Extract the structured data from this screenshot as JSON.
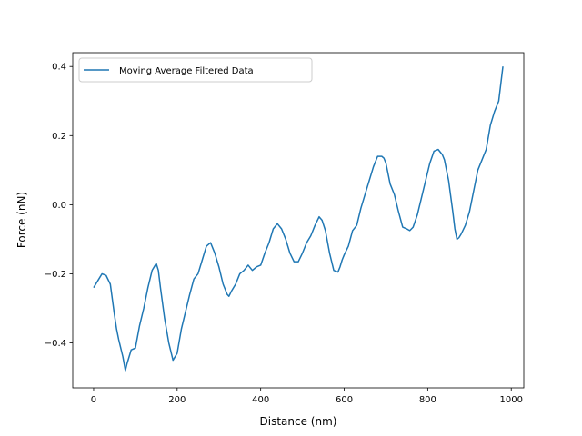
{
  "chart_data": {
    "type": "line",
    "title": "",
    "xlabel": "Distance (nm)",
    "ylabel": "Force (nN)",
    "xlim": [
      -50,
      1030
    ],
    "ylim": [
      -0.53,
      0.44
    ],
    "xticks": [
      0,
      200,
      400,
      600,
      800,
      1000
    ],
    "yticks": [
      -0.4,
      -0.2,
      0.0,
      0.2,
      0.4
    ],
    "xtick_labels": [
      "0",
      "200",
      "400",
      "600",
      "800",
      "1000"
    ],
    "ytick_labels": [
      "−0.4",
      "−0.2",
      "0.0",
      "0.2",
      "0.4"
    ],
    "grid": false,
    "legend_position": "upper-left",
    "series": [
      {
        "name": "Moving Average Filtered Data",
        "color": "#1f77b4",
        "x": [
          0,
          10,
          20,
          30,
          40,
          50,
          55,
          60,
          70,
          76,
          80,
          90,
          100,
          110,
          120,
          130,
          140,
          150,
          155,
          160,
          170,
          180,
          190,
          200,
          210,
          220,
          230,
          240,
          250,
          260,
          270,
          280,
          285,
          290,
          300,
          310,
          320,
          324,
          330,
          340,
          350,
          360,
          370,
          380,
          390,
          400,
          410,
          420,
          430,
          440,
          450,
          460,
          470,
          480,
          490,
          500,
          510,
          520,
          530,
          540,
          547,
          555,
          565,
          575,
          585,
          590,
          595,
          600,
          610,
          620,
          630,
          640,
          650,
          660,
          670,
          680,
          690,
          695,
          700,
          710,
          720,
          730,
          740,
          750,
          757,
          765,
          775,
          785,
          795,
          805,
          815,
          825,
          835,
          840,
          850,
          860,
          865,
          870,
          875,
          880,
          890,
          900,
          910,
          920,
          930,
          940,
          950,
          960,
          970,
          980
        ],
        "y": [
          -0.24,
          -0.22,
          -0.2,
          -0.205,
          -0.23,
          -0.32,
          -0.36,
          -0.39,
          -0.44,
          -0.48,
          -0.46,
          -0.42,
          -0.415,
          -0.35,
          -0.3,
          -0.24,
          -0.19,
          -0.17,
          -0.19,
          -0.24,
          -0.33,
          -0.4,
          -0.45,
          -0.43,
          -0.36,
          -0.31,
          -0.26,
          -0.215,
          -0.2,
          -0.16,
          -0.12,
          -0.11,
          -0.125,
          -0.14,
          -0.18,
          -0.23,
          -0.26,
          -0.265,
          -0.25,
          -0.23,
          -0.2,
          -0.19,
          -0.175,
          -0.19,
          -0.18,
          -0.175,
          -0.14,
          -0.11,
          -0.07,
          -0.055,
          -0.07,
          -0.1,
          -0.14,
          -0.165,
          -0.165,
          -0.14,
          -0.11,
          -0.09,
          -0.06,
          -0.035,
          -0.045,
          -0.075,
          -0.14,
          -0.19,
          -0.195,
          -0.18,
          -0.16,
          -0.145,
          -0.12,
          -0.075,
          -0.06,
          -0.01,
          0.03,
          0.07,
          0.11,
          0.14,
          0.14,
          0.135,
          0.12,
          0.06,
          0.03,
          -0.02,
          -0.065,
          -0.07,
          -0.075,
          -0.065,
          -0.03,
          0.02,
          0.07,
          0.12,
          0.155,
          0.16,
          0.145,
          0.13,
          0.07,
          -0.02,
          -0.07,
          -0.1,
          -0.095,
          -0.085,
          -0.06,
          -0.02,
          0.04,
          0.1,
          0.13,
          0.16,
          0.23,
          0.27,
          0.3,
          0.4
        ]
      }
    ]
  }
}
